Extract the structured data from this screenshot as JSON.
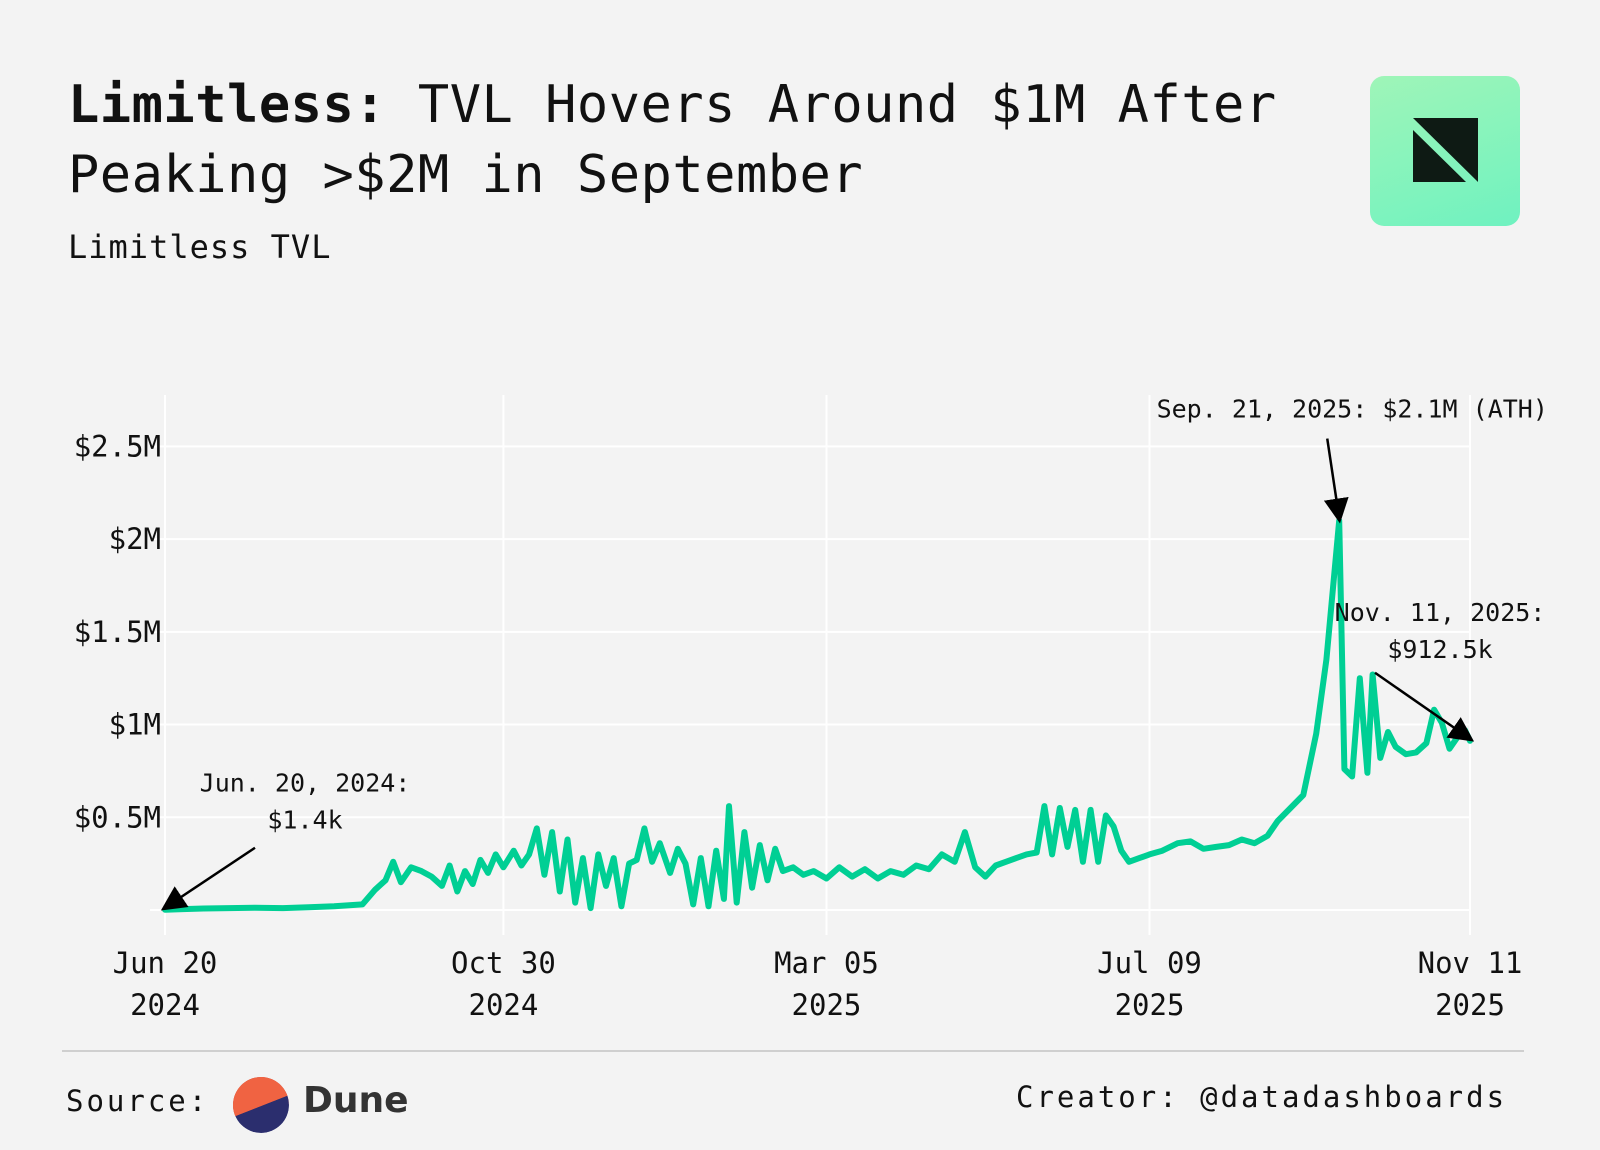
{
  "header": {
    "title_bold": "Limitless:",
    "title_rest": " TVL Hovers Around $1M After Peaking >$2M in September",
    "subtitle": "Limitless TVL"
  },
  "footer": {
    "source_label": "Source:",
    "source_name": "Dune",
    "creator": "Creator: @datadashboards"
  },
  "colors": {
    "background": "#f3f3f3",
    "line": "#00cf94",
    "grid": "#ffffff",
    "logo_gradient": [
      "#9ff5b8",
      "#6ff2c0"
    ],
    "dune_top": "#f06342",
    "dune_bottom": "#2b2e6e"
  },
  "icons": {
    "brand_logo": "datadashboards-logo-icon",
    "dune_logo": "dune-logo-icon"
  },
  "chart_data": {
    "type": "line",
    "title": "",
    "xlabel": "",
    "ylabel": "",
    "ylim": [
      0,
      2750000
    ],
    "xlim": [
      "2024-06-20",
      "2025-11-11"
    ],
    "grid": true,
    "y_ticks": [
      {
        "value": 500000,
        "label": "$0.5M"
      },
      {
        "value": 1000000,
        "label": "$1M"
      },
      {
        "value": 1500000,
        "label": "$1.5M"
      },
      {
        "value": 2000000,
        "label": "$2M"
      },
      {
        "value": 2500000,
        "label": "$2.5M"
      }
    ],
    "x_ticks": [
      {
        "date": "2024-06-20",
        "label": [
          "Jun 20",
          "2024"
        ]
      },
      {
        "date": "2024-10-30",
        "label": [
          "Oct 30",
          "2024"
        ]
      },
      {
        "date": "2025-03-05",
        "label": [
          "Mar 05",
          "2025"
        ]
      },
      {
        "date": "2025-07-09",
        "label": [
          "Jul 09",
          "2025"
        ]
      },
      {
        "date": "2025-11-11",
        "label": [
          "Nov 11",
          "2025"
        ]
      }
    ],
    "series": [
      {
        "points": [
          [
            "2024-06-20",
            1400
          ],
          [
            "2024-06-27",
            5000
          ],
          [
            "2024-07-05",
            8000
          ],
          [
            "2024-07-15",
            10000
          ],
          [
            "2024-07-25",
            12000
          ],
          [
            "2024-08-05",
            10000
          ],
          [
            "2024-08-15",
            15000
          ],
          [
            "2024-08-25",
            20000
          ],
          [
            "2024-09-05",
            30000
          ],
          [
            "2024-09-10",
            110000
          ],
          [
            "2024-09-14",
            160000
          ],
          [
            "2024-09-17",
            260000
          ],
          [
            "2024-09-20",
            150000
          ],
          [
            "2024-09-24",
            230000
          ],
          [
            "2024-09-28",
            210000
          ],
          [
            "2024-10-02",
            180000
          ],
          [
            "2024-10-06",
            130000
          ],
          [
            "2024-10-09",
            240000
          ],
          [
            "2024-10-12",
            100000
          ],
          [
            "2024-10-15",
            210000
          ],
          [
            "2024-10-18",
            140000
          ],
          [
            "2024-10-21",
            270000
          ],
          [
            "2024-10-24",
            200000
          ],
          [
            "2024-10-27",
            300000
          ],
          [
            "2024-10-30",
            230000
          ],
          [
            "2024-11-03",
            320000
          ],
          [
            "2024-11-06",
            240000
          ],
          [
            "2024-11-09",
            300000
          ],
          [
            "2024-11-12",
            440000
          ],
          [
            "2024-11-15",
            190000
          ],
          [
            "2024-11-18",
            420000
          ],
          [
            "2024-11-21",
            100000
          ],
          [
            "2024-11-24",
            380000
          ],
          [
            "2024-11-27",
            40000
          ],
          [
            "2024-11-30",
            280000
          ],
          [
            "2024-12-03",
            10000
          ],
          [
            "2024-12-06",
            300000
          ],
          [
            "2024-12-09",
            130000
          ],
          [
            "2024-12-12",
            280000
          ],
          [
            "2024-12-15",
            20000
          ],
          [
            "2024-12-18",
            250000
          ],
          [
            "2024-12-21",
            270000
          ],
          [
            "2024-12-24",
            440000
          ],
          [
            "2024-12-27",
            260000
          ],
          [
            "2024-12-30",
            360000
          ],
          [
            "2025-01-03",
            200000
          ],
          [
            "2025-01-06",
            330000
          ],
          [
            "2025-01-09",
            250000
          ],
          [
            "2025-01-12",
            30000
          ],
          [
            "2025-01-15",
            280000
          ],
          [
            "2025-01-18",
            20000
          ],
          [
            "2025-01-21",
            320000
          ],
          [
            "2025-01-24",
            60000
          ],
          [
            "2025-01-26",
            560000
          ],
          [
            "2025-01-29",
            40000
          ],
          [
            "2025-02-01",
            420000
          ],
          [
            "2025-02-04",
            120000
          ],
          [
            "2025-02-07",
            350000
          ],
          [
            "2025-02-10",
            160000
          ],
          [
            "2025-02-13",
            330000
          ],
          [
            "2025-02-16",
            210000
          ],
          [
            "2025-02-20",
            230000
          ],
          [
            "2025-02-24",
            190000
          ],
          [
            "2025-02-28",
            210000
          ],
          [
            "2025-03-05",
            170000
          ],
          [
            "2025-03-10",
            230000
          ],
          [
            "2025-03-15",
            180000
          ],
          [
            "2025-03-20",
            220000
          ],
          [
            "2025-03-25",
            170000
          ],
          [
            "2025-03-30",
            210000
          ],
          [
            "2025-04-04",
            190000
          ],
          [
            "2025-04-09",
            240000
          ],
          [
            "2025-04-14",
            220000
          ],
          [
            "2025-04-19",
            300000
          ],
          [
            "2025-04-24",
            260000
          ],
          [
            "2025-04-28",
            420000
          ],
          [
            "2025-05-02",
            230000
          ],
          [
            "2025-05-06",
            180000
          ],
          [
            "2025-05-10",
            240000
          ],
          [
            "2025-05-14",
            260000
          ],
          [
            "2025-05-18",
            280000
          ],
          [
            "2025-05-22",
            300000
          ],
          [
            "2025-05-26",
            310000
          ],
          [
            "2025-05-29",
            560000
          ],
          [
            "2025-06-01",
            300000
          ],
          [
            "2025-06-04",
            550000
          ],
          [
            "2025-06-07",
            340000
          ],
          [
            "2025-06-10",
            540000
          ],
          [
            "2025-06-13",
            260000
          ],
          [
            "2025-06-16",
            540000
          ],
          [
            "2025-06-19",
            260000
          ],
          [
            "2025-06-22",
            510000
          ],
          [
            "2025-06-25",
            450000
          ],
          [
            "2025-06-28",
            320000
          ],
          [
            "2025-07-01",
            260000
          ],
          [
            "2025-07-05",
            280000
          ],
          [
            "2025-07-09",
            300000
          ],
          [
            "2025-07-14",
            320000
          ],
          [
            "2025-07-20",
            360000
          ],
          [
            "2025-07-25",
            370000
          ],
          [
            "2025-07-30",
            330000
          ],
          [
            "2025-08-04",
            340000
          ],
          [
            "2025-08-09",
            350000
          ],
          [
            "2025-08-14",
            380000
          ],
          [
            "2025-08-19",
            360000
          ],
          [
            "2025-08-24",
            400000
          ],
          [
            "2025-08-28",
            480000
          ],
          [
            "2025-09-02",
            550000
          ],
          [
            "2025-09-07",
            620000
          ],
          [
            "2025-09-12",
            950000
          ],
          [
            "2025-09-16",
            1350000
          ],
          [
            "2025-09-21",
            2100000
          ],
          [
            "2025-09-23",
            760000
          ],
          [
            "2025-09-26",
            720000
          ],
          [
            "2025-09-29",
            1250000
          ],
          [
            "2025-10-02",
            740000
          ],
          [
            "2025-10-04",
            1270000
          ],
          [
            "2025-10-07",
            820000
          ],
          [
            "2025-10-10",
            960000
          ],
          [
            "2025-10-13",
            880000
          ],
          [
            "2025-10-17",
            840000
          ],
          [
            "2025-10-21",
            850000
          ],
          [
            "2025-10-25",
            900000
          ],
          [
            "2025-10-28",
            1080000
          ],
          [
            "2025-10-31",
            1010000
          ],
          [
            "2025-11-03",
            870000
          ],
          [
            "2025-11-06",
            930000
          ],
          [
            "2025-11-09",
            970000
          ],
          [
            "2025-11-11",
            912500
          ]
        ]
      }
    ],
    "annotations": [
      {
        "text": [
          "Sep. 21, 2025: $2.1M (ATH)"
        ],
        "date": "2025-09-21",
        "value": 2100000
      },
      {
        "text": [
          "Nov. 11, 2025:",
          "$912.5k"
        ],
        "date": "2025-11-11",
        "value": 912500
      },
      {
        "text": [
          "Jun. 20, 2024:",
          "$1.4k"
        ],
        "date": "2024-06-20",
        "value": 1400
      }
    ]
  }
}
